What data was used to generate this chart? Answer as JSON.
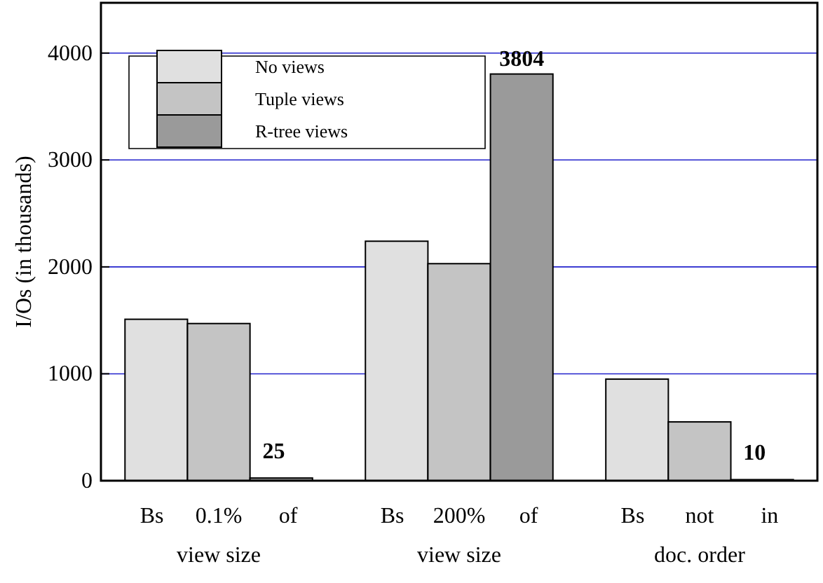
{
  "chart_data": {
    "type": "bar",
    "ylabel": "I/Os (in thousands)",
    "categories": [
      "Bs 0.1% of view size",
      "Bs 200% of view size",
      "Bs not in doc. order"
    ],
    "series": [
      {
        "name": "No views",
        "color": "#e0e0e0",
        "values": [
          1510,
          2240,
          950
        ]
      },
      {
        "name": "Tuple views",
        "color": "#c4c4c4",
        "values": [
          1470,
          2030,
          550
        ]
      },
      {
        "name": "R-tree views",
        "color": "#9a9a9a",
        "values": [
          25,
          3804,
          10
        ],
        "value_labels": [
          "25",
          "3804",
          "10"
        ]
      }
    ],
    "ylim": [
      0,
      4470
    ],
    "yticks": [
      0,
      1000,
      2000,
      3000,
      4000
    ],
    "grid": "y",
    "legend": "top left"
  }
}
